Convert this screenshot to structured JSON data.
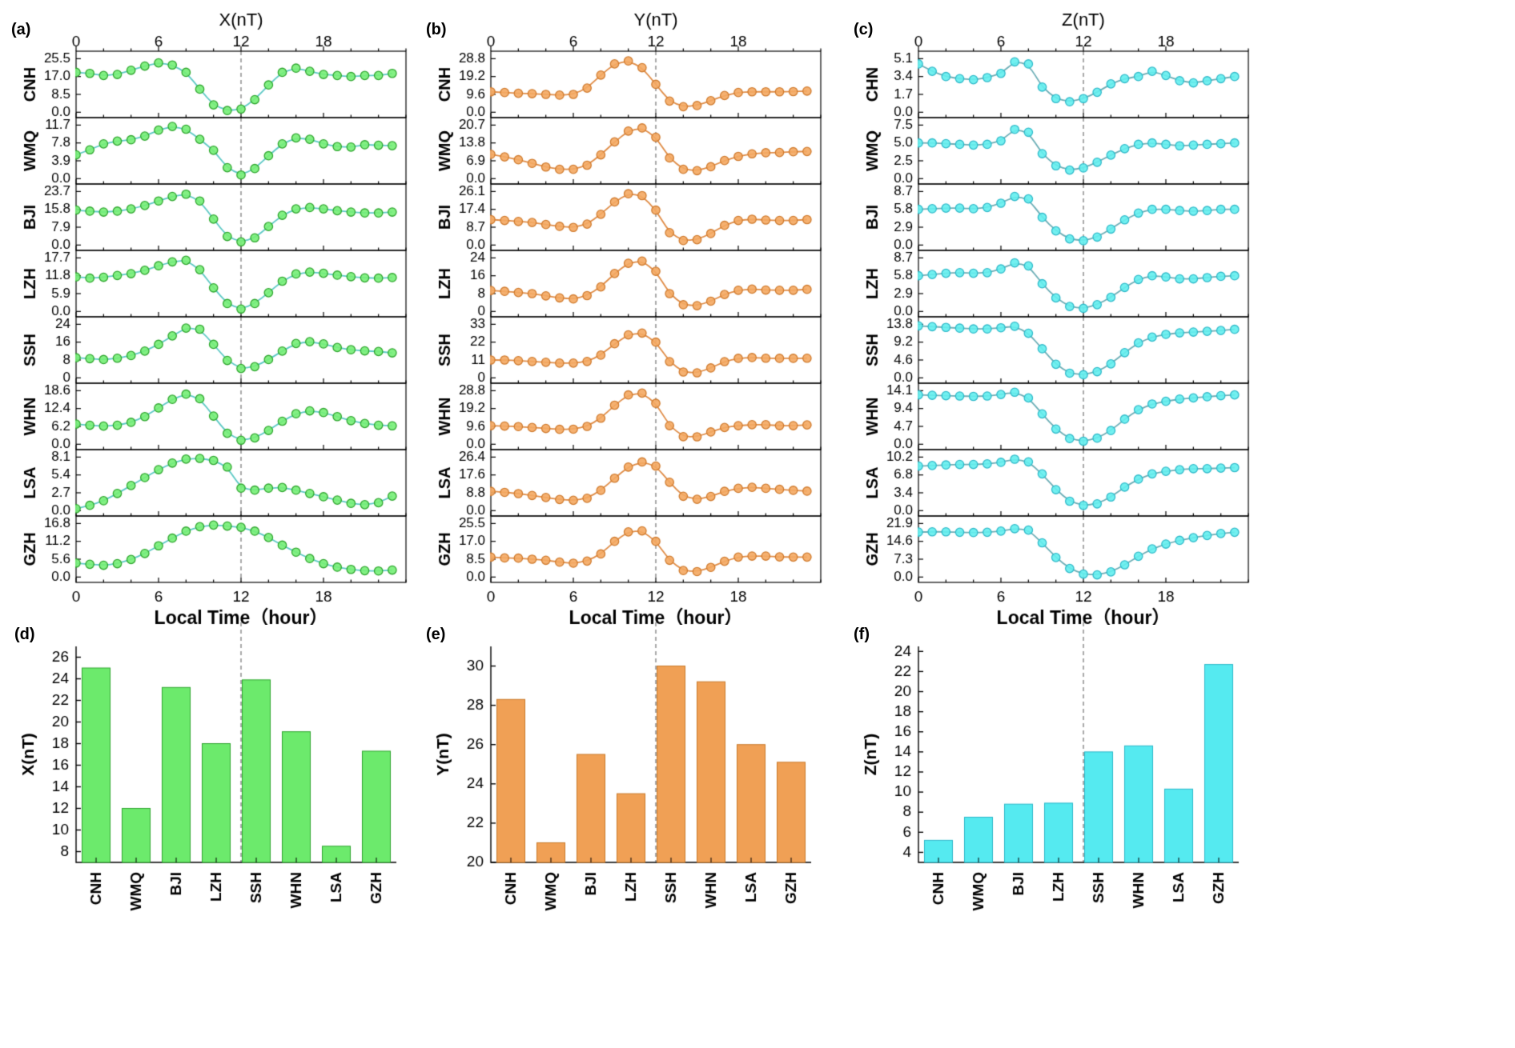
{
  "panel_labels": {
    "a": "(a)",
    "b": "(b)",
    "c": "(c)",
    "d": "(d)",
    "e": "(e)",
    "f": "(f)"
  },
  "chart_data": [
    {
      "type": "line",
      "panel": "a",
      "title": "X(nT)",
      "xlabel": "Local Time（hour）",
      "x_ticks": [
        0,
        6,
        12,
        18
      ],
      "x_range": [
        0,
        24
      ],
      "dash_hour": 12,
      "marker_fill": "#76EE76",
      "marker_stroke": "#2EA52E",
      "line_color": "#5BC8C4",
      "stations": [
        {
          "name": "CNH",
          "yticks": [
            "0.0",
            "8.5",
            "17.0",
            "25.5"
          ],
          "values": [
            19,
            18.5,
            17.5,
            18,
            20,
            22,
            23.5,
            22.5,
            19,
            11,
            3.5,
            0.8,
            1.5,
            6,
            13,
            19,
            21,
            19.5,
            18,
            17.5,
            17,
            17.5,
            17.5,
            18.5
          ]
        },
        {
          "name": "WMQ",
          "yticks": [
            "0.0",
            "3.9",
            "7.8",
            "11.7"
          ],
          "values": [
            5.2,
            6.3,
            7.6,
            8.2,
            8.5,
            9.3,
            10.6,
            11.4,
            10.8,
            8.6,
            6.2,
            2.4,
            0.8,
            2.2,
            5,
            7.6,
            8.9,
            8.6,
            7.6,
            7,
            6.9,
            7.4,
            7.3,
            7.2
          ]
        },
        {
          "name": "BJI",
          "yticks": [
            "0.0",
            "7.9",
            "15.8",
            "23.7"
          ],
          "values": [
            15.5,
            15,
            14.6,
            15,
            16,
            17.5,
            19.5,
            21.5,
            22.5,
            19.5,
            11.5,
            3.8,
            1.4,
            3.2,
            8.2,
            13.2,
            16,
            16.6,
            16,
            15.2,
            14.6,
            14.2,
            14.2,
            14.6
          ]
        },
        {
          "name": "LZH",
          "yticks": [
            "0.0",
            "5.9",
            "11.8",
            "17.7"
          ],
          "values": [
            11.4,
            11,
            11.3,
            11.9,
            12.5,
            13.6,
            15.1,
            16.4,
            16.9,
            13.8,
            7.8,
            2.6,
            0.8,
            2.6,
            6.2,
            10,
            12.4,
            13,
            12.6,
            12,
            11.5,
            11.1,
            11,
            11.2
          ]
        },
        {
          "name": "SSH",
          "yticks": [
            "0",
            "8",
            "16",
            "24"
          ],
          "values": [
            9,
            8.6,
            8.2,
            8.8,
            10,
            12,
            15,
            18.8,
            22.3,
            21.8,
            15,
            7.8,
            4.2,
            5,
            8.2,
            12,
            15.4,
            16.2,
            15.2,
            13.6,
            12.6,
            12.1,
            11.8,
            11.2
          ]
        },
        {
          "name": "WHN",
          "yticks": [
            "0.0",
            "6.2",
            "12.4",
            "18.6"
          ],
          "values": [
            7,
            6.6,
            6.3,
            6.6,
            7.6,
            9.6,
            12.6,
            15.6,
            17.4,
            15.8,
            9.8,
            3.8,
            1.4,
            2.2,
            4.8,
            8,
            10.6,
            11.6,
            11,
            9.6,
            8.2,
            7.2,
            6.6,
            6.4
          ]
        },
        {
          "name": "LSA",
          "yticks": [
            "0.0",
            "2.7",
            "5.4",
            "8.1"
          ],
          "values": [
            0.3,
            0.8,
            1.5,
            2.6,
            3.8,
            5,
            6.2,
            7.2,
            7.8,
            7.9,
            7.6,
            6.6,
            3.4,
            3.1,
            3.4,
            3.5,
            3.1,
            2.6,
            2.1,
            1.6,
            1.1,
            0.9,
            1.2,
            2.2
          ]
        },
        {
          "name": "GZH",
          "yticks": [
            "0.0",
            "5.6",
            "11.2",
            "16.8"
          ],
          "values": [
            4.4,
            4,
            3.7,
            4.2,
            5.5,
            7.4,
            9.8,
            12.2,
            14.4,
            15.8,
            16.3,
            16,
            15.6,
            14.4,
            12.4,
            10,
            7.8,
            5.8,
            4.2,
            3.1,
            2.4,
            2,
            1.9,
            2.2
          ]
        }
      ]
    },
    {
      "type": "line",
      "panel": "b",
      "title": "Y(nT)",
      "xlabel": "Local Time（hour）",
      "x_ticks": [
        0,
        6,
        12,
        18
      ],
      "x_range": [
        0,
        24
      ],
      "dash_hour": 12,
      "marker_fill": "#F4A962",
      "marker_stroke": "#D07B2E",
      "line_color": "#DF8B45",
      "stations": [
        {
          "name": "CNH",
          "yticks": [
            "0.0",
            "9.6",
            "19.2",
            "28.8"
          ],
          "values": [
            11,
            10.6,
            10.2,
            10,
            9.6,
            9.2,
            9.6,
            13,
            20,
            26,
            27.6,
            24,
            15,
            6,
            3,
            3.6,
            6.2,
            9,
            10.6,
            11,
            11,
            11,
            11.1,
            11.4
          ]
        },
        {
          "name": "WMQ",
          "yticks": [
            "0.0",
            "6.9",
            "13.8",
            "20.7"
          ],
          "values": [
            9.4,
            8.4,
            7.3,
            5.9,
            4.5,
            3.6,
            3.6,
            5.2,
            9.2,
            14.2,
            18.4,
            19.6,
            16,
            8,
            3.6,
            3.1,
            4.6,
            7,
            8.6,
            9.6,
            10,
            10.1,
            10.4,
            10.5
          ]
        },
        {
          "name": "BJI",
          "yticks": [
            "0.0",
            "8.7",
            "17.4",
            "26.1"
          ],
          "values": [
            12.4,
            12,
            11.5,
            11,
            10,
            9.1,
            8.6,
            10.2,
            15,
            21,
            25,
            24.1,
            17,
            6,
            2.2,
            2.6,
            5.6,
            9.6,
            12,
            12.6,
            12.2,
            12,
            12,
            12.4
          ]
        },
        {
          "name": "LZH",
          "yticks": [
            "0",
            "8",
            "16",
            "24"
          ],
          "values": [
            9.4,
            9,
            8.5,
            8,
            7,
            6.1,
            5.6,
            7.1,
            11,
            17,
            21.6,
            22.6,
            18,
            8,
            3,
            2.6,
            4.6,
            7.6,
            9.5,
            10,
            9.6,
            9.5,
            9.5,
            9.9
          ]
        },
        {
          "name": "SSH",
          "yticks": [
            "0",
            "11",
            "22",
            "33"
          ],
          "values": [
            11,
            11,
            10.6,
            10.1,
            9.6,
            9.1,
            9.1,
            10.1,
            14,
            21,
            26.5,
            27.6,
            22,
            10,
            3.6,
            3.1,
            6.1,
            10,
            12,
            12.5,
            12.1,
            12,
            12,
            12.1
          ]
        },
        {
          "name": "WHN",
          "yticks": [
            "0.0",
            "9.6",
            "19.2",
            "28.8"
          ],
          "values": [
            10,
            9.8,
            9.5,
            9,
            8.5,
            8,
            8.1,
            9.6,
            14,
            21,
            26.5,
            27.5,
            22,
            10,
            4.1,
            4,
            6.6,
            9,
            10,
            10.5,
            10.5,
            10,
            10,
            10.4
          ]
        },
        {
          "name": "LSA",
          "yticks": [
            "0.0",
            "8.8",
            "17.6",
            "26.4"
          ],
          "values": [
            9.5,
            9,
            8.4,
            7.5,
            6.5,
            5.5,
            5.1,
            6.1,
            10,
            16,
            21.5,
            24,
            22,
            14,
            7.1,
            5.6,
            7,
            9.5,
            11,
            11.5,
            11,
            10.5,
            10,
            9.6
          ]
        },
        {
          "name": "GZH",
          "yticks": [
            "0.0",
            "8.5",
            "17.0",
            "25.5"
          ],
          "values": [
            9.5,
            9.1,
            9,
            8.5,
            8,
            7.1,
            6.6,
            7.6,
            11,
            17,
            21.5,
            22,
            17,
            8,
            3.1,
            2.6,
            4.6,
            7.5,
            9.5,
            10,
            10,
            9.6,
            9.5,
            9.5
          ]
        }
      ]
    },
    {
      "type": "line",
      "panel": "c",
      "title": "Z(nT)",
      "xlabel": "Local Time（hour）",
      "x_ticks": [
        0,
        6,
        12,
        18
      ],
      "x_range": [
        0,
        24
      ],
      "dash_hour": 12,
      "marker_fill": "#63EEEE",
      "marker_stroke": "#2FB9C9",
      "line_color": "#6BADB5",
      "stations": [
        {
          "name": "CHN",
          "yticks": [
            "0.0",
            "1.7",
            "3.4",
            "5.1"
          ],
          "values": [
            4.6,
            3.9,
            3.4,
            3.2,
            3.1,
            3.3,
            3.7,
            4.8,
            4.6,
            2.4,
            1.3,
            1.0,
            1.3,
            1.9,
            2.7,
            3.2,
            3.4,
            3.9,
            3.5,
            3.0,
            2.8,
            3.0,
            3.2,
            3.4
          ]
        },
        {
          "name": "WMQ",
          "yticks": [
            "0.0",
            "2.5",
            "5.0",
            "7.5"
          ],
          "values": [
            5.0,
            5.0,
            4.9,
            4.8,
            4.7,
            4.8,
            5.3,
            6.9,
            6.5,
            3.5,
            1.8,
            1.2,
            1.5,
            2.3,
            3.3,
            4.2,
            4.8,
            5.0,
            4.8,
            4.6,
            4.7,
            4.8,
            4.9,
            5.0
          ]
        },
        {
          "name": "BJI",
          "yticks": [
            "0.0",
            "2.9",
            "5.8",
            "8.7"
          ],
          "values": [
            5.8,
            5.9,
            6.0,
            6.0,
            5.9,
            6.1,
            6.8,
            7.9,
            7.5,
            4.5,
            2.3,
            1.0,
            0.7,
            1.3,
            2.6,
            4.1,
            5.2,
            5.8,
            5.8,
            5.6,
            5.5,
            5.6,
            5.8,
            5.8
          ]
        },
        {
          "name": "LZH",
          "yticks": [
            "0.0",
            "2.9",
            "5.8",
            "8.7"
          ],
          "values": [
            5.8,
            6.0,
            6.2,
            6.3,
            6.2,
            6.3,
            6.9,
            7.9,
            7.4,
            4.5,
            2.2,
            0.8,
            0.5,
            1.1,
            2.3,
            3.9,
            5.2,
            5.8,
            5.6,
            5.3,
            5.3,
            5.5,
            5.7,
            5.8
          ]
        },
        {
          "name": "SSH",
          "yticks": [
            "0.0",
            "4.6",
            "9.2",
            "13.8"
          ],
          "values": [
            13.4,
            13.2,
            13.0,
            12.8,
            12.6,
            12.6,
            12.9,
            13.3,
            11.5,
            7.5,
            3.5,
            1.2,
            0.8,
            1.6,
            3.6,
            6.5,
            9.0,
            10.5,
            11.2,
            11.6,
            11.8,
            12.0,
            12.2,
            12.5
          ]
        },
        {
          "name": "WHN",
          "yticks": [
            "0.0",
            "4.7",
            "9.4",
            "14.1"
          ],
          "values": [
            13.0,
            12.9,
            12.8,
            12.7,
            12.6,
            12.7,
            13.1,
            13.7,
            12.2,
            8.0,
            4.0,
            1.5,
            0.8,
            1.6,
            3.6,
            6.6,
            9.1,
            10.6,
            11.3,
            11.9,
            12.2,
            12.5,
            12.8,
            13.0
          ]
        },
        {
          "name": "LSA",
          "yticks": [
            "0.0",
            "3.4",
            "6.8",
            "10.2"
          ],
          "values": [
            8.5,
            8.6,
            8.7,
            8.8,
            8.8,
            8.9,
            9.2,
            9.8,
            9.3,
            7.0,
            4.0,
            1.8,
            1.0,
            1.3,
            2.6,
            4.5,
            6.0,
            7.0,
            7.5,
            7.8,
            8.0,
            8.0,
            8.1,
            8.2
          ]
        },
        {
          "name": "GZH",
          "yticks": [
            "0.0",
            "7.3",
            "14.6",
            "21.9"
          ],
          "values": [
            18.4,
            18.5,
            18.5,
            18.3,
            18.2,
            18.3,
            18.8,
            19.8,
            19.2,
            14.0,
            8.0,
            3.5,
            1.2,
            0.9,
            2.1,
            5.0,
            8.5,
            11.5,
            13.5,
            15.0,
            16.1,
            17.0,
            17.8,
            18.3
          ]
        }
      ]
    },
    {
      "type": "bar",
      "panel": "d",
      "ylabel": "X(nT)",
      "categories": [
        "CNH",
        "WMQ",
        "BJI",
        "LZH",
        "SSH",
        "WHN",
        "LSA",
        "GZH"
      ],
      "values": [
        25.0,
        12.0,
        23.2,
        18.0,
        23.9,
        19.1,
        8.5,
        17.3
      ],
      "yticks": [
        8,
        10,
        12,
        14,
        16,
        18,
        20,
        22,
        24,
        26
      ],
      "ylim": [
        7,
        27
      ],
      "bar_fill": "#6CEA6C",
      "bar_stroke": "#2EA52E",
      "dash_hour": 12
    },
    {
      "type": "bar",
      "panel": "e",
      "ylabel": "Y(nT)",
      "categories": [
        "CNH",
        "WMQ",
        "BJI",
        "LZH",
        "SSH",
        "WHN",
        "LSA",
        "GZH"
      ],
      "values": [
        28.3,
        21.0,
        25.5,
        23.5,
        30.0,
        29.2,
        26.0,
        25.1
      ],
      "yticks": [
        20,
        22,
        24,
        26,
        28,
        30
      ],
      "ylim": [
        20,
        31
      ],
      "bar_fill": "#F0A055",
      "bar_stroke": "#C87828",
      "dash_hour": 12
    },
    {
      "type": "bar",
      "panel": "f",
      "ylabel": "Z(nT)",
      "categories": [
        "CNH",
        "WMQ",
        "BJI",
        "LZH",
        "SSH",
        "WHN",
        "LSA",
        "GZH"
      ],
      "values": [
        5.2,
        7.5,
        8.8,
        8.9,
        14.0,
        14.6,
        10.3,
        22.7
      ],
      "yticks": [
        4,
        6,
        8,
        10,
        12,
        14,
        16,
        18,
        20,
        22,
        24
      ],
      "ylim": [
        3,
        24.5
      ],
      "bar_fill": "#55EAF0",
      "bar_stroke": "#29B6C8",
      "dash_hour": 12
    }
  ]
}
